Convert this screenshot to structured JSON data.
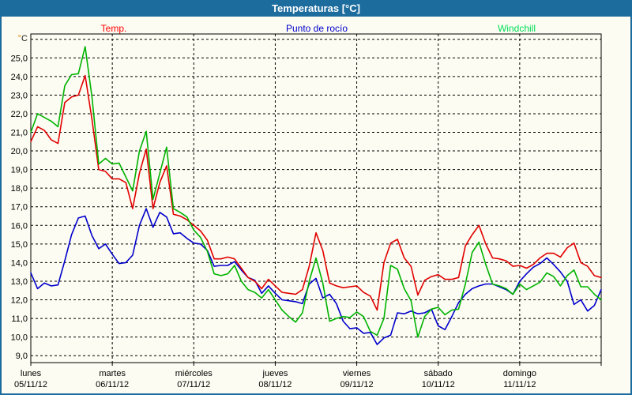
{
  "window": {
    "title": "Temperaturas [°C]"
  },
  "colors": {
    "titlebar_bg": "#1d6c9e",
    "content_bg": "#fcfcf2",
    "grid": "#000000",
    "temp_line": "#e00000",
    "temp_label": "#ff0000",
    "dew_line": "#0000cc",
    "dew_label": "#0000cc",
    "windchill_line": "#00b300",
    "windchill_label": "#00dd55",
    "degree_symbol": "#e08000",
    "degree_letter": "#222222"
  },
  "chart_data": {
    "type": "line",
    "title": "Temperaturas [°C]",
    "y_axis": {
      "unit": "°C",
      "tick_labels": [
        "25,0",
        "24,0",
        "23,0",
        "22,0",
        "21,0",
        "20,0",
        "19,0",
        "18,0",
        "17,0",
        "16,0",
        "15,0",
        "14,0",
        "13,0",
        "12,0",
        "11,0",
        "10,0",
        "9,0"
      ],
      "grid_values": [
        26,
        25,
        24,
        23,
        22,
        21,
        20,
        19,
        18,
        17,
        16,
        15,
        14,
        13,
        12,
        11,
        10,
        9
      ],
      "top_grid_value": 26,
      "bottom_grid_value": 9,
      "grid_style": "dashed"
    },
    "x_axis": {
      "days": [
        {
          "name": "lunes",
          "date": "05/11/12"
        },
        {
          "name": "martes",
          "date": "06/11/12"
        },
        {
          "name": "miércoles",
          "date": "07/11/12"
        },
        {
          "name": "jueves",
          "date": "08/11/12"
        },
        {
          "name": "viernes",
          "date": "09/11/12"
        },
        {
          "name": "sábado",
          "date": "10/11/12"
        },
        {
          "name": "domingo",
          "date": "11/11/12"
        }
      ],
      "grid_style": "dashed"
    },
    "sampling_interval_hours": 2,
    "legend_position": "top",
    "series": [
      {
        "name": "Temp.",
        "values": [
          20.5,
          21.3,
          21.1,
          20.6,
          20.4,
          22.6,
          22.9,
          23.0,
          24.05,
          21.7,
          19.0,
          18.9,
          18.5,
          18.5,
          18.3,
          16.9,
          18.8,
          20.1,
          16.9,
          18.3,
          19.2,
          16.6,
          16.5,
          16.3,
          16.0,
          15.7,
          15.2,
          14.2,
          14.2,
          14.3,
          14.2,
          13.7,
          13.2,
          13.0,
          12.6,
          13.1,
          12.75,
          12.4,
          12.35,
          12.3,
          12.55,
          13.8,
          15.6,
          14.65,
          12.9,
          12.75,
          12.65,
          12.7,
          12.75,
          12.4,
          12.2,
          11.45,
          14.0,
          15.05,
          15.25,
          14.25,
          13.8,
          12.25,
          13.05,
          13.25,
          13.35,
          13.1,
          13.1,
          13.2,
          14.9,
          15.5,
          16.0,
          15.0,
          14.25,
          14.2,
          14.1,
          13.8,
          13.85,
          13.7,
          13.9,
          14.25,
          14.5,
          14.5,
          14.3,
          14.8,
          15.05,
          14.0,
          13.8,
          13.3,
          13.2
        ]
      },
      {
        "name": "Punto de rocío",
        "values": [
          13.45,
          12.6,
          12.9,
          12.75,
          12.8,
          14.1,
          15.5,
          16.4,
          16.5,
          15.45,
          14.75,
          15.0,
          14.45,
          13.95,
          14.0,
          14.4,
          16.0,
          16.9,
          15.9,
          16.7,
          16.45,
          15.55,
          15.6,
          15.3,
          15.05,
          15.0,
          14.65,
          13.8,
          13.85,
          13.85,
          14.05,
          13.6,
          13.2,
          13.05,
          12.35,
          12.75,
          12.35,
          12.0,
          11.95,
          11.9,
          11.8,
          12.85,
          13.15,
          12.1,
          12.3,
          11.8,
          10.85,
          10.45,
          10.5,
          10.2,
          10.25,
          9.6,
          9.95,
          10.1,
          11.3,
          11.25,
          11.4,
          11.25,
          11.3,
          11.5,
          10.6,
          10.4,
          11.1,
          11.85,
          12.3,
          12.6,
          12.75,
          12.85,
          12.85,
          12.7,
          12.55,
          12.3,
          13.0,
          13.4,
          13.75,
          13.95,
          14.25,
          13.9,
          13.5,
          13.0,
          11.75,
          12.0,
          11.4,
          11.7,
          12.55
        ]
      },
      {
        "name": "Windchill",
        "values": [
          21.0,
          22.0,
          21.8,
          21.6,
          21.3,
          23.5,
          24.1,
          24.15,
          25.6,
          22.9,
          19.3,
          19.6,
          19.3,
          19.35,
          18.6,
          17.85,
          20.0,
          21.05,
          17.4,
          18.8,
          20.2,
          16.9,
          16.7,
          16.45,
          15.75,
          15.35,
          14.6,
          13.4,
          13.3,
          13.4,
          13.85,
          13.0,
          12.55,
          12.4,
          12.1,
          12.55,
          12.0,
          11.45,
          11.1,
          10.8,
          11.3,
          13.0,
          14.25,
          12.9,
          10.85,
          11.0,
          11.1,
          11.05,
          11.35,
          11.1,
          10.3,
          10.1,
          11.0,
          13.85,
          13.65,
          12.6,
          11.95,
          10.0,
          11.1,
          11.5,
          11.6,
          11.2,
          11.45,
          11.5,
          12.85,
          14.55,
          15.1,
          13.9,
          12.85,
          12.75,
          12.6,
          12.3,
          12.85,
          12.55,
          12.75,
          12.95,
          13.45,
          13.25,
          12.75,
          13.3,
          13.6,
          12.7,
          12.7,
          12.3,
          12.0
        ]
      }
    ]
  }
}
